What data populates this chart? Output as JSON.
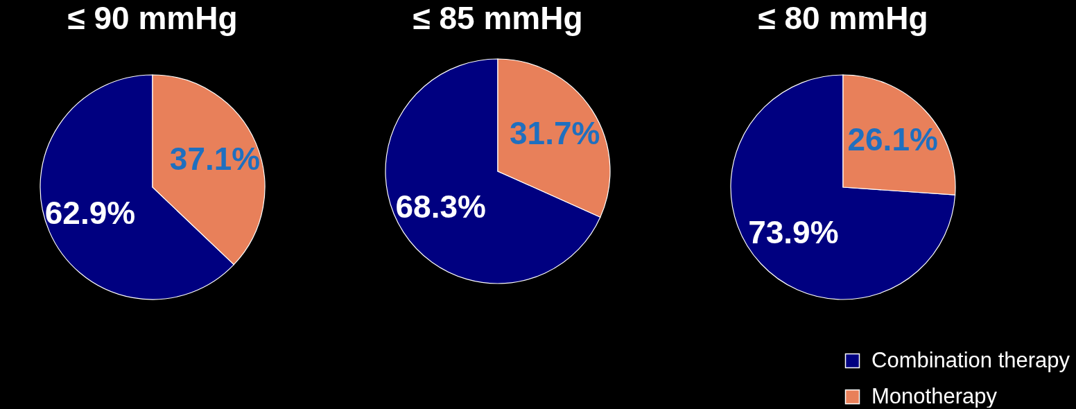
{
  "chart_data": [
    {
      "type": "pie",
      "title": "≤ 90 mmHg",
      "categories": [
        null,
        null
      ],
      "values": [
        62.9,
        37.1
      ],
      "colors": [
        "#000080",
        "#e8805a"
      ],
      "value_labels": [
        "62.9%",
        "37.1%"
      ]
    },
    {
      "type": "pie",
      "title": "≤ 85 mmHg",
      "categories": [
        null,
        null
      ],
      "values": [
        68.3,
        31.7
      ],
      "colors": [
        "#000080",
        "#e8805a"
      ],
      "value_labels": [
        "68.3%",
        "31.7%"
      ]
    },
    {
      "type": "pie",
      "title": "≤ 80 mmHg",
      "categories": [
        "Combination therapy",
        "Monotherapy"
      ],
      "values": [
        73.9,
        26.1
      ],
      "colors": [
        "#000080",
        "#e8805a"
      ],
      "value_labels": [
        "73.9%",
        "26.1%"
      ],
      "legend": "bottom right"
    }
  ]
}
